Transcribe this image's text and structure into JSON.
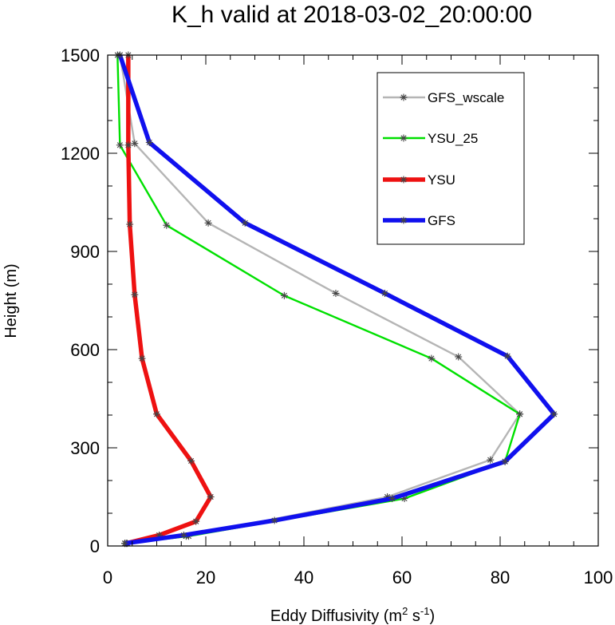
{
  "chart_data": {
    "type": "line",
    "title": "K_h valid at 2018-03-02_20:00:00",
    "xlabel": {
      "text": "Eddy Diffusivity (m",
      "sup1": "2",
      "mid": " s",
      "sup2": "-1",
      "end": ")"
    },
    "ylabel": "Height (m)",
    "xlim": [
      0,
      100
    ],
    "ylim": [
      0,
      1500
    ],
    "xticks": [
      0,
      20,
      40,
      60,
      80,
      100
    ],
    "yticks": [
      0,
      300,
      600,
      900,
      1200,
      1500
    ],
    "xtick_labels": [
      "0",
      "20",
      "40",
      "60",
      "80",
      "100"
    ],
    "ytick_labels": [
      "0",
      "300",
      "600",
      "900",
      "1200",
      "1500"
    ],
    "legend_position": "top-right",
    "series": [
      {
        "name": "GFS_wscale",
        "color": "#b5b5b5",
        "line_weight": "thin",
        "marker": "asterisk",
        "marker_color": "#444444",
        "x": [
          3.5,
          16.0,
          57.0,
          78.0,
          84.0,
          71.5,
          46.5,
          20.5,
          5.5,
          2.5
        ],
        "y": [
          8,
          30,
          150,
          263,
          403,
          578,
          772,
          987,
          1230,
          1500
        ]
      },
      {
        "name": "YSU_25",
        "color": "#00e000",
        "line_weight": "thin",
        "marker": "asterisk",
        "marker_color": "#444444",
        "x": [
          4.0,
          16.5,
          60.5,
          81.0,
          84.0,
          66.0,
          36.0,
          12.0,
          2.5,
          2.0
        ],
        "y": [
          8,
          30,
          145,
          258,
          403,
          573,
          765,
          980,
          1225,
          1500
        ]
      },
      {
        "name": "YSU",
        "color": "#ee1111",
        "line_weight": "thick",
        "marker": "asterisk",
        "marker_color": "#444444",
        "x": [
          3.8,
          10.5,
          18.0,
          21.0,
          17.0,
          10.0,
          7.0,
          5.5,
          4.5,
          4.2,
          4.2
        ],
        "y": [
          8,
          33,
          75,
          150,
          260,
          403,
          573,
          768,
          983,
          1225,
          1500
        ]
      },
      {
        "name": "GFS",
        "color": "#1010ee",
        "line_weight": "thick",
        "marker": "asterisk",
        "marker_color": "#444444",
        "x": [
          3.5,
          15.5,
          34.0,
          58.0,
          81.0,
          91.0,
          81.5,
          56.5,
          28.0,
          8.5,
          2.5
        ],
        "y": [
          8,
          33,
          78,
          145,
          258,
          403,
          580,
          772,
          987,
          1233,
          1500
        ]
      }
    ]
  }
}
